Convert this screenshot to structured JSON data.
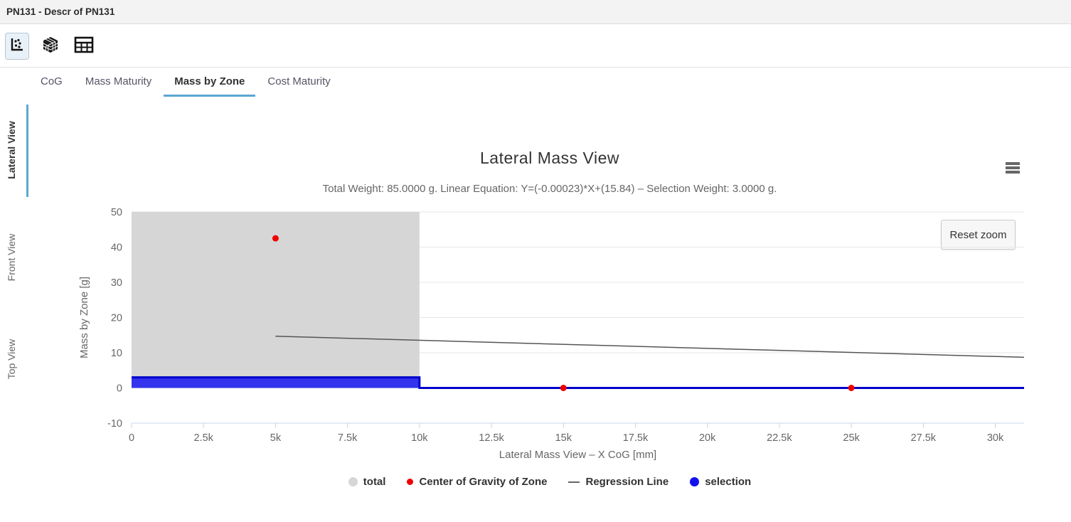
{
  "window": {
    "title": "PN131 - Descr of PN131"
  },
  "colors": {
    "accent": "#5ba7d3",
    "grid": "#e6e6e6",
    "axis_line": "#ccd6eb"
  },
  "toolbar": {
    "icons": [
      {
        "name": "scatter-chart-icon",
        "selected": true
      },
      {
        "name": "cube-3d-icon",
        "selected": false
      },
      {
        "name": "data-table-icon",
        "selected": false
      }
    ]
  },
  "tabs": [
    {
      "label": "CoG",
      "active": false
    },
    {
      "label": "Mass Maturity",
      "active": false
    },
    {
      "label": "Mass by Zone",
      "active": true
    },
    {
      "label": "Cost Maturity",
      "active": false
    }
  ],
  "side_tabs": [
    {
      "label": "Lateral View",
      "active": true
    },
    {
      "label": "Front View",
      "active": false
    },
    {
      "label": "Top View",
      "active": false
    }
  ],
  "chart": {
    "reset_zoom_label": "Reset zoom"
  },
  "chart_data": {
    "type": "area+scatter+line",
    "title": "Lateral Mass View",
    "subtitle": "Total Weight: 85.0000 g. Linear Equation: Y=(-0.00023)*X+(15.84) – Selection Weight: 3.0000 g.",
    "xlabel": "Lateral Mass View – X CoG [mm]",
    "ylabel": "Mass by Zone [g]",
    "xlim": [
      0,
      31000
    ],
    "ylim": [
      -10,
      50
    ],
    "grid": true,
    "legend_position": "bottom",
    "x_ticks": [
      0,
      2500,
      5000,
      7500,
      10000,
      12500,
      15000,
      17500,
      20000,
      22500,
      25000,
      27500,
      30000
    ],
    "x_tick_labels": [
      "0",
      "2.5k",
      "5k",
      "7.5k",
      "10k",
      "12.5k",
      "15k",
      "17.5k",
      "20k",
      "22.5k",
      "25k",
      "27.5k",
      "30k"
    ],
    "y_ticks": [
      -10,
      0,
      10,
      20,
      30,
      40,
      50
    ],
    "y_tick_labels": [
      "-10",
      "0",
      "10",
      "20",
      "30",
      "40",
      "50"
    ],
    "colors": {
      "grid": "#e6e6e6",
      "axis": "#ccd6eb",
      "tick_text": "#666666"
    },
    "series": [
      {
        "name": "total",
        "type": "area",
        "color": "#d6d6d6",
        "line_color": null,
        "baseline": 0,
        "points": [
          [
            0,
            85
          ],
          [
            10000,
            85
          ]
        ],
        "note": "total mass 85 g over zone 0-10000 mm, clipped at y-axis max 50"
      },
      {
        "name": "selection",
        "type": "area",
        "color": "#3333ee",
        "line_color": "#0000cc",
        "line_width": 3,
        "baseline": 0,
        "points": [
          [
            0,
            3
          ],
          [
            10000,
            3
          ],
          [
            10000,
            0
          ],
          [
            31000,
            0
          ]
        ],
        "note": "selection weight 3 g in zone 0-10000 mm, 0 elsewhere"
      },
      {
        "name": "Regression Line",
        "type": "line",
        "color": "#555555",
        "line_width": 1.5,
        "points": [
          [
            5000,
            14.69
          ],
          [
            31000,
            8.71
          ]
        ],
        "equation": "Y=(-0.00023)*X+(15.84)"
      },
      {
        "name": "Center of Gravity of Zone",
        "type": "scatter",
        "color": "#ee0000",
        "marker_radius": 4.5,
        "points": [
          [
            5000,
            42.5
          ],
          [
            15000,
            0
          ],
          [
            25000,
            0
          ]
        ]
      }
    ],
    "legend": [
      {
        "label": "total",
        "symbol": "circle-large",
        "color": "#d6d6d6"
      },
      {
        "label": "Center of Gravity of Zone",
        "symbol": "circle-small",
        "color": "#ee0000"
      },
      {
        "label": "Regression Line",
        "symbol": "line",
        "color": "#666666"
      },
      {
        "label": "selection",
        "symbol": "circle-large",
        "color": "#1111ee"
      }
    ]
  }
}
